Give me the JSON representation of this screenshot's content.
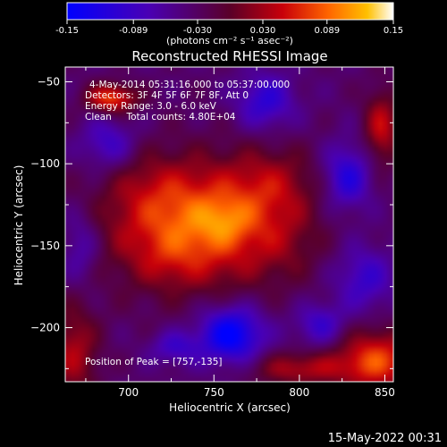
{
  "chart_data": {
    "type": "heatmap",
    "title": "Reconstructed RHESSI Image",
    "xlabel": "Heliocentric X (arcsec)",
    "ylabel": "Heliocentric Y (arcsec)",
    "xlim": [
      663,
      855
    ],
    "ylim": [
      -233,
      -41
    ],
    "x_ticks": [
      700,
      750,
      800,
      850
    ],
    "y_ticks": [
      -200,
      -150,
      -100,
      -50
    ],
    "colorbar": {
      "range": [
        -0.15,
        0.15
      ],
      "ticks": [
        -0.15,
        -0.089,
        -0.03,
        0.03,
        0.089,
        0.15
      ],
      "tick_labels": [
        "-0.15",
        "-0.089",
        "-0.030",
        "0.030",
        "0.089",
        "0.15"
      ],
      "unit_label": "(photons cm⁻² s⁻¹ asec⁻²)"
    },
    "annotations": [
      "4-May-2014 05:31:16.000 to 05:37:00.000",
      "Detectors: 3F 4F 5F 6F 7F 8F, Att 0",
      "Energy Range: 3.0 - 6.0 keV",
      "Clean     Total counts: 4.80E+04"
    ],
    "peak_label": "Position of Peak = [757,-135]",
    "peak": [
      757,
      -135
    ],
    "blobs": [
      {
        "x": 740,
        "y": -137,
        "sx": 36,
        "sy": 26,
        "v": 0.13
      },
      {
        "x": 757,
        "y": -135,
        "sx": 10,
        "sy": 9,
        "v": 0.03
      },
      {
        "x": 785,
        "y": -112,
        "sx": 18,
        "sy": 16,
        "v": 0.045
      },
      {
        "x": 792,
        "y": -150,
        "sx": 14,
        "sy": 16,
        "v": 0.02
      },
      {
        "x": 712,
        "y": -112,
        "sx": 16,
        "sy": 14,
        "v": 0.018
      },
      {
        "x": 722,
        "y": -160,
        "sx": 13,
        "sy": 11,
        "v": 0.015
      },
      {
        "x": 690,
        "y": -60,
        "sx": 10,
        "sy": 6,
        "v": 0.11
      },
      {
        "x": 848,
        "y": -78,
        "sx": 7,
        "sy": 16,
        "v": 0.08
      },
      {
        "x": 845,
        "y": -220,
        "sx": 16,
        "sy": 13,
        "v": 0.11
      },
      {
        "x": 800,
        "y": -225,
        "sx": 20,
        "sy": 7,
        "v": 0.07
      },
      {
        "x": 668,
        "y": -215,
        "sx": 10,
        "sy": 20,
        "v": 0.07
      },
      {
        "x": 760,
        "y": -204,
        "sx": 13,
        "sy": 12,
        "v": -0.12
      },
      {
        "x": 727,
        "y": -212,
        "sx": 10,
        "sy": 7,
        "v": -0.055
      },
      {
        "x": 780,
        "y": -62,
        "sx": 12,
        "sy": 12,
        "v": -0.07
      },
      {
        "x": 828,
        "y": -108,
        "sx": 10,
        "sy": 14,
        "v": -0.08
      },
      {
        "x": 688,
        "y": -88,
        "sx": 11,
        "sy": 11,
        "v": -0.06
      },
      {
        "x": 838,
        "y": -170,
        "sx": 12,
        "sy": 14,
        "v": -0.06
      },
      {
        "x": 672,
        "y": -150,
        "sx": 8,
        "sy": 16,
        "v": -0.05
      },
      {
        "x": 812,
        "y": -198,
        "sx": 10,
        "sy": 9,
        "v": -0.06
      }
    ],
    "background": -0.035
  },
  "footer": {
    "timestamp": "15-May-2022 00:31"
  }
}
